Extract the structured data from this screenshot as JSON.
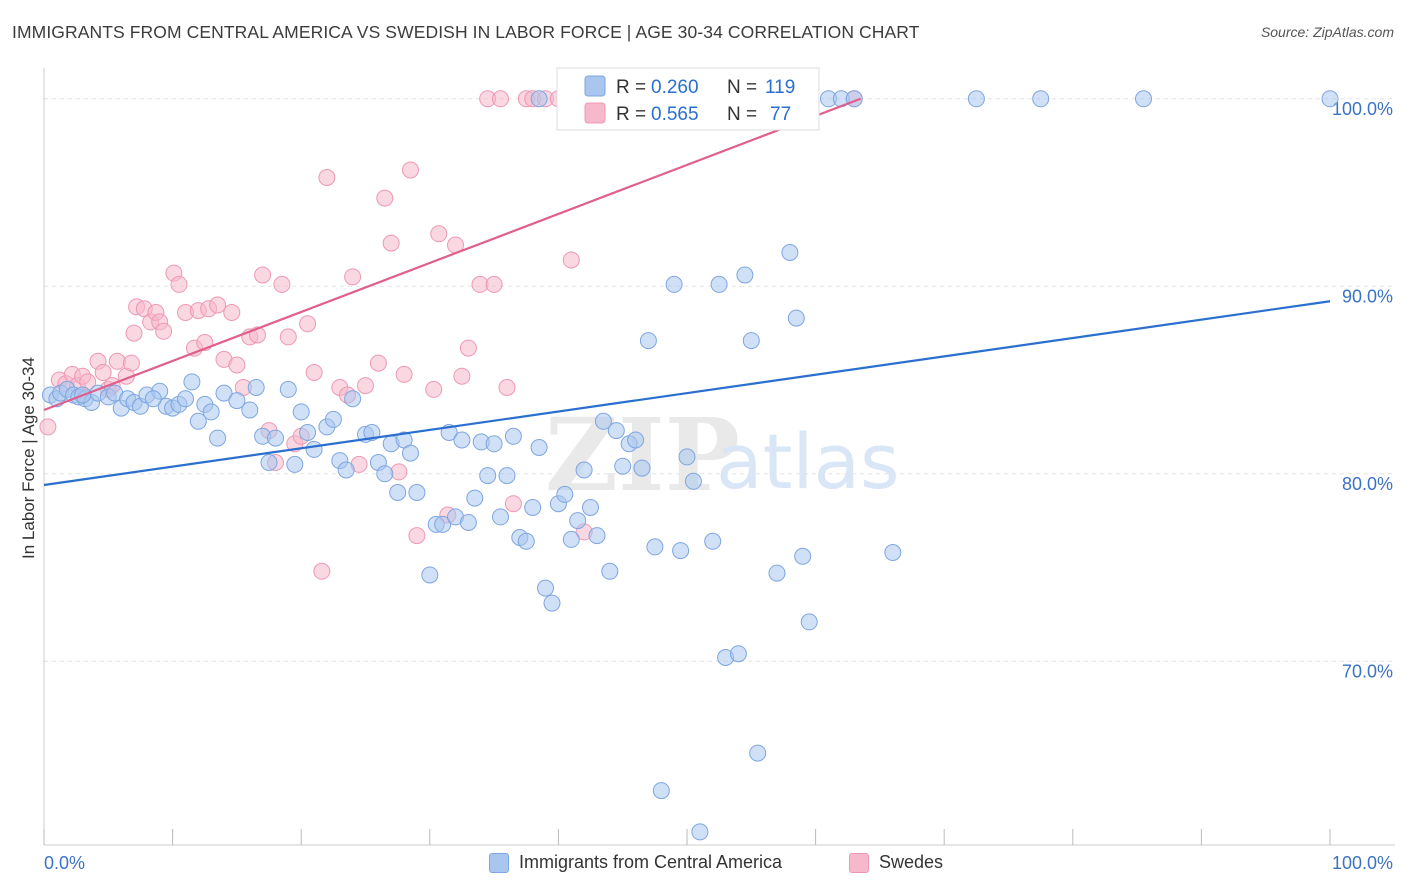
{
  "header": {
    "title": "IMMIGRANTS FROM CENTRAL AMERICA VS SWEDISH IN LABOR FORCE | AGE 30-34 CORRELATION CHART",
    "source": "Source: ZipAtlas.com"
  },
  "watermark": {
    "zip": "ZIP",
    "atlas": "atlas"
  },
  "stats_legend": [
    {
      "r_label": "R =",
      "r_value": "0.260",
      "n_label": "N =",
      "n_value": "119"
    },
    {
      "r_label": "R =",
      "r_value": "0.565",
      "n_label": "N =",
      "n_value": "77"
    }
  ],
  "colors": {
    "blue_fill": "#a9c6ee",
    "blue_stroke": "#7ea6e0",
    "blue_line": "#2a6fd0",
    "pink_fill": "#f6b8cb",
    "pink_stroke": "#ee98b4",
    "pink_line": "#e05f8c",
    "tick_label": "#3b73c4",
    "grid": "#e3e3e3"
  },
  "chart_data": {
    "type": "scatter",
    "title": "IMMIGRANTS FROM CENTRAL AMERICA VS SWEDISH IN LABOR FORCE | AGE 30-34 CORRELATION CHART",
    "xlabel": "",
    "ylabel": "In Labor Force | Age 30-34",
    "xlim": [
      0,
      100
    ],
    "ylim": [
      60.2,
      101.0
    ],
    "x_tick_labels": [
      "0.0%",
      "100.0%"
    ],
    "y_ticks": [
      70,
      80,
      90,
      100
    ],
    "y_tick_labels": [
      "70.0%",
      "80.0%",
      "90.0%",
      "100.0%"
    ],
    "grid": true,
    "legend_position": "top-center",
    "series": [
      {
        "name": "Immigrants from Central America",
        "color": "#a9c6ee",
        "trendline": {
          "x": [
            0,
            100
          ],
          "y": [
            79.4,
            89.2
          ]
        },
        "points": [
          [
            0.5,
            84.2
          ],
          [
            1.0,
            84.0
          ],
          [
            1.3,
            84.3
          ],
          [
            1.8,
            84.5
          ],
          [
            2.3,
            84.2
          ],
          [
            2.7,
            84.1
          ],
          [
            3.2,
            84.0
          ],
          [
            3.7,
            83.8
          ],
          [
            4.2,
            84.3
          ],
          [
            5.0,
            84.1
          ],
          [
            5.5,
            84.3
          ],
          [
            6.0,
            83.5
          ],
          [
            6.5,
            84.0
          ],
          [
            7.0,
            83.8
          ],
          [
            7.5,
            83.6
          ],
          [
            8.0,
            84.2
          ],
          [
            9.0,
            84.4
          ],
          [
            9.5,
            83.6
          ],
          [
            10.0,
            83.5
          ],
          [
            10.5,
            83.7
          ],
          [
            11.0,
            84.0
          ],
          [
            11.5,
            84.9
          ],
          [
            12.0,
            82.8
          ],
          [
            12.5,
            83.7
          ],
          [
            13.0,
            83.3
          ],
          [
            13.5,
            81.9
          ],
          [
            14.0,
            84.3
          ],
          [
            15.0,
            83.9
          ],
          [
            16.0,
            83.4
          ],
          [
            16.5,
            84.6
          ],
          [
            17.0,
            82.0
          ],
          [
            17.5,
            80.6
          ],
          [
            18.0,
            81.9
          ],
          [
            19.0,
            84.5
          ],
          [
            19.5,
            80.5
          ],
          [
            20.0,
            83.3
          ],
          [
            20.5,
            82.2
          ],
          [
            21.0,
            81.3
          ],
          [
            22.0,
            82.5
          ],
          [
            22.5,
            82.9
          ],
          [
            23.0,
            80.7
          ],
          [
            23.5,
            80.2
          ],
          [
            24.0,
            84.0
          ],
          [
            25.0,
            82.1
          ],
          [
            25.5,
            82.2
          ],
          [
            26.0,
            80.6
          ],
          [
            26.5,
            80.0
          ],
          [
            27.0,
            81.6
          ],
          [
            27.5,
            79.0
          ],
          [
            28.0,
            81.8
          ],
          [
            28.5,
            81.1
          ],
          [
            29.0,
            79.0
          ],
          [
            30.0,
            74.6
          ],
          [
            30.5,
            77.3
          ],
          [
            31.0,
            77.3
          ],
          [
            31.5,
            82.2
          ],
          [
            32.0,
            77.7
          ],
          [
            32.5,
            81.8
          ],
          [
            33.0,
            77.4
          ],
          [
            33.5,
            78.7
          ],
          [
            34.0,
            81.7
          ],
          [
            34.5,
            79.9
          ],
          [
            35.0,
            81.6
          ],
          [
            35.5,
            77.7
          ],
          [
            36.0,
            79.9
          ],
          [
            36.5,
            82.0
          ],
          [
            37.0,
            76.6
          ],
          [
            37.5,
            76.4
          ],
          [
            38.0,
            78.2
          ],
          [
            38.5,
            81.4
          ],
          [
            39.0,
            73.9
          ],
          [
            39.5,
            73.1
          ],
          [
            40.0,
            78.4
          ],
          [
            40.5,
            78.9
          ],
          [
            41.0,
            76.5
          ],
          [
            41.5,
            77.5
          ],
          [
            42.0,
            80.2
          ],
          [
            42.5,
            78.2
          ],
          [
            43.0,
            76.7
          ],
          [
            43.5,
            82.8
          ],
          [
            44.0,
            74.8
          ],
          [
            44.5,
            82.3
          ],
          [
            45.0,
            80.4
          ],
          [
            45.5,
            81.6
          ],
          [
            46.0,
            81.8
          ],
          [
            46.5,
            80.3
          ],
          [
            47.0,
            87.1
          ],
          [
            47.5,
            76.1
          ],
          [
            48.0,
            63.1
          ],
          [
            49.0,
            90.1
          ],
          [
            49.5,
            75.9
          ],
          [
            50.0,
            80.9
          ],
          [
            50.5,
            79.6
          ],
          [
            51.0,
            60.9
          ],
          [
            52.0,
            76.4
          ],
          [
            52.5,
            90.1
          ],
          [
            53.0,
            70.2
          ],
          [
            54.0,
            70.4
          ],
          [
            54.5,
            90.6
          ],
          [
            55.0,
            87.1
          ],
          [
            55.5,
            65.1
          ],
          [
            57.0,
            74.7
          ],
          [
            58.0,
            91.8
          ],
          [
            58.5,
            88.3
          ],
          [
            59.0,
            75.6
          ],
          [
            59.5,
            72.1
          ],
          [
            61.0,
            100.0
          ],
          [
            62.0,
            100.0
          ],
          [
            63.0,
            100.0
          ],
          [
            66.0,
            75.8
          ],
          [
            72.5,
            100.0
          ],
          [
            77.5,
            100.0
          ],
          [
            85.5,
            100.0
          ],
          [
            100.0,
            100.0
          ],
          [
            51.0,
            100.0
          ],
          [
            56.0,
            100.0
          ],
          [
            38.5,
            100.0
          ],
          [
            8.5,
            84.0
          ],
          [
            3.0,
            84.2
          ]
        ]
      },
      {
        "name": "Swedes",
        "color": "#f6b8cb",
        "trendline": {
          "x": [
            0,
            63.5
          ],
          "y": [
            83.4,
            100.0
          ]
        },
        "points": [
          [
            0.3,
            82.5
          ],
          [
            1.2,
            85.0
          ],
          [
            1.7,
            84.8
          ],
          [
            2.2,
            85.3
          ],
          [
            2.6,
            84.7
          ],
          [
            3.0,
            85.2
          ],
          [
            3.4,
            84.9
          ],
          [
            4.2,
            86.0
          ],
          [
            4.6,
            85.4
          ],
          [
            5.0,
            84.5
          ],
          [
            5.3,
            84.7
          ],
          [
            5.7,
            86.0
          ],
          [
            6.4,
            85.2
          ],
          [
            6.8,
            85.9
          ],
          [
            7.0,
            87.5
          ],
          [
            7.2,
            88.9
          ],
          [
            7.8,
            88.8
          ],
          [
            8.3,
            88.1
          ],
          [
            8.7,
            88.6
          ],
          [
            9.0,
            88.1
          ],
          [
            9.3,
            87.6
          ],
          [
            10.1,
            90.7
          ],
          [
            10.5,
            90.1
          ],
          [
            11.0,
            88.6
          ],
          [
            11.7,
            86.7
          ],
          [
            12.0,
            88.7
          ],
          [
            12.5,
            87.0
          ],
          [
            12.8,
            88.8
          ],
          [
            13.5,
            89.0
          ],
          [
            14.0,
            86.1
          ],
          [
            14.6,
            88.6
          ],
          [
            15.0,
            85.8
          ],
          [
            15.5,
            84.6
          ],
          [
            16.0,
            87.3
          ],
          [
            16.6,
            87.4
          ],
          [
            17.0,
            90.6
          ],
          [
            17.5,
            82.3
          ],
          [
            18.0,
            80.6
          ],
          [
            18.5,
            90.1
          ],
          [
            19.0,
            87.3
          ],
          [
            19.5,
            81.6
          ],
          [
            20.0,
            82.0
          ],
          [
            20.5,
            88.0
          ],
          [
            21.0,
            85.4
          ],
          [
            21.6,
            74.8
          ],
          [
            22.0,
            95.8
          ],
          [
            23.0,
            84.6
          ],
          [
            23.6,
            84.2
          ],
          [
            24.0,
            90.5
          ],
          [
            24.5,
            80.5
          ],
          [
            25.0,
            84.7
          ],
          [
            26.0,
            85.9
          ],
          [
            26.5,
            94.7
          ],
          [
            27.0,
            92.3
          ],
          [
            27.6,
            80.1
          ],
          [
            28.0,
            85.3
          ],
          [
            28.5,
            96.2
          ],
          [
            29.0,
            76.7
          ],
          [
            30.3,
            84.5
          ],
          [
            30.7,
            92.8
          ],
          [
            31.4,
            77.8
          ],
          [
            32.0,
            92.2
          ],
          [
            32.5,
            85.2
          ],
          [
            33.0,
            86.7
          ],
          [
            33.9,
            90.1
          ],
          [
            34.5,
            100.0
          ],
          [
            35.0,
            90.1
          ],
          [
            35.5,
            100.0
          ],
          [
            36.0,
            84.6
          ],
          [
            36.5,
            78.4
          ],
          [
            37.5,
            100.0
          ],
          [
            38.0,
            100.0
          ],
          [
            39.0,
            100.0
          ],
          [
            40.0,
            100.0
          ],
          [
            41.0,
            91.4
          ],
          [
            42.0,
            76.9
          ],
          [
            63.0,
            100.0
          ]
        ]
      }
    ]
  },
  "bottom_legend": [
    {
      "label": "Immigrants from Central America"
    },
    {
      "label": "Swedes"
    }
  ]
}
